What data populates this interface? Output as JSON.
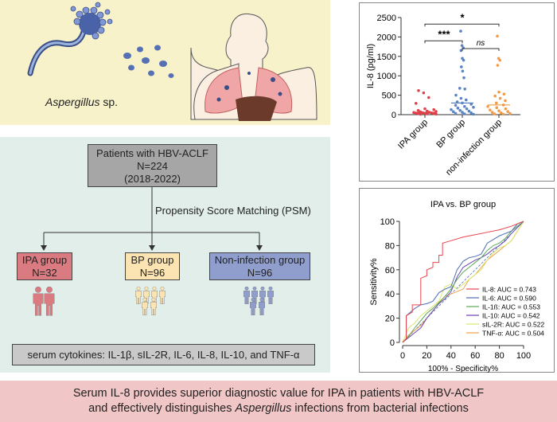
{
  "illustration": {
    "organism_label": "Aspergillus",
    "organism_suffix": " sp."
  },
  "flowchart": {
    "root": {
      "line1": "Patients with HBV-ACLF",
      "line2": "N=224",
      "line3": "(2018-2022)"
    },
    "method": "Propensity Score Matching (PSM)",
    "groups": [
      {
        "name": "IPA group",
        "n": "N=32",
        "color": "#d97b80"
      },
      {
        "name": "BP group",
        "n": "N=96",
        "color": "#fbe4b2"
      },
      {
        "name": "Non-infection group",
        "n": "N=96",
        "color": "#8f9ecd"
      }
    ],
    "cytokines": "serum cytokines: IL-1β, sIL-2R, IL-6, IL-8, IL-10, and TNF-α"
  },
  "chart_data": [
    {
      "type": "scatter",
      "ylabel": "IL-8 (pg/ml)",
      "ylim": [
        0,
        2500
      ],
      "yticks": [
        "0",
        "500",
        "1000",
        "1500",
        "2000",
        "2500"
      ],
      "categories": [
        "IPA group",
        "BP group",
        "non-infection group"
      ],
      "colors": [
        "#e0404a",
        "#5b84c4",
        "#f39a45"
      ],
      "series": [
        {
          "values": [
            620,
            560,
            440,
            290,
            150,
            130,
            110,
            90,
            80,
            70,
            60,
            55,
            50,
            45,
            40,
            35,
            30,
            25,
            20,
            15,
            10
          ]
        },
        {
          "values": [
            2150,
            1780,
            1720,
            1650,
            1450,
            1400,
            1230,
            1120,
            950,
            680,
            660,
            500,
            420,
            380,
            330,
            300,
            270,
            240,
            210,
            190,
            170,
            150,
            130,
            110,
            90,
            75,
            60,
            45,
            30,
            20,
            10
          ]
        },
        {
          "values": [
            2020,
            1450,
            1400,
            1270,
            580,
            530,
            480,
            420,
            360,
            300,
            250,
            210,
            180,
            150,
            120,
            100,
            80,
            60,
            45,
            30,
            20,
            10
          ]
        }
      ],
      "annotations": [
        {
          "from": "IPA group",
          "to": "non-infection group",
          "label": "*"
        },
        {
          "from": "IPA group",
          "to": "BP group",
          "label": "***"
        },
        {
          "from": "BP group",
          "to": "non-infection group",
          "label": "ns"
        }
      ]
    },
    {
      "type": "line",
      "title": "IPA vs. BP group",
      "xlabel": "100% - Specificity%",
      "ylabel": "Sensitivity%",
      "xlim": [
        0,
        100
      ],
      "ylim": [
        0,
        100
      ],
      "xticks": [
        "0",
        "20",
        "40",
        "60",
        "80",
        "100"
      ],
      "yticks": [
        "0",
        "20",
        "40",
        "60",
        "80",
        "100"
      ],
      "legend_position": "bottom-right",
      "series": [
        {
          "name": "IL-8: AUC = 0.743",
          "color": "#e8474f",
          "x": [
            0,
            3,
            3,
            8,
            8,
            15,
            15,
            20,
            20,
            25,
            25,
            30,
            30,
            33,
            33,
            40,
            50,
            60,
            70,
            80,
            90,
            100
          ],
          "y": [
            0,
            3,
            22,
            25,
            31,
            31,
            53,
            55,
            60,
            62,
            66,
            66,
            72,
            72,
            82,
            84,
            87,
            89,
            91,
            93,
            96,
            100
          ]
        },
        {
          "name": "IL-6: AUC = 0.590",
          "color": "#4f6fb3",
          "x": [
            0,
            3,
            3,
            10,
            15,
            20,
            25,
            30,
            35,
            40,
            45,
            50,
            55,
            60,
            65,
            70,
            75,
            80,
            90,
            95,
            100
          ],
          "y": [
            0,
            3,
            22,
            28,
            31,
            32,
            34,
            41,
            44,
            46,
            60,
            67,
            70,
            71,
            73,
            82,
            85,
            88,
            92,
            98,
            100
          ]
        },
        {
          "name": "IL-1ß: AUC = 0.553",
          "color": "#5aa85a",
          "x": [
            0,
            5,
            10,
            15,
            20,
            25,
            30,
            35,
            40,
            45,
            50,
            55,
            60,
            65,
            70,
            75,
            80,
            85,
            90,
            100
          ],
          "y": [
            0,
            5,
            12,
            18,
            24,
            28,
            33,
            38,
            44,
            52,
            58,
            62,
            66,
            70,
            76,
            80,
            82,
            86,
            92,
            100
          ]
        },
        {
          "name": "IL-10: AUC = 0.542",
          "color": "#6b45b5",
          "x": [
            0,
            5,
            10,
            15,
            20,
            25,
            30,
            35,
            40,
            45,
            50,
            55,
            60,
            65,
            70,
            75,
            80,
            85,
            90,
            100
          ],
          "y": [
            0,
            4,
            8,
            12,
            20,
            26,
            32,
            36,
            42,
            54,
            62,
            65,
            68,
            70,
            73,
            77,
            80,
            84,
            90,
            100
          ]
        },
        {
          "name": "sIL-2R: AUC = 0.522",
          "color": "#d9e86b",
          "x": [
            0,
            5,
            10,
            15,
            20,
            25,
            30,
            35,
            40,
            45,
            50,
            55,
            60,
            65,
            70,
            75,
            80,
            85,
            90,
            100
          ],
          "y": [
            0,
            12,
            16,
            22,
            26,
            30,
            34,
            46,
            48,
            44,
            48,
            52,
            56,
            60,
            68,
            74,
            78,
            80,
            84,
            100
          ]
        },
        {
          "name": "TNF-α: AUC = 0.504",
          "color": "#f0a24d",
          "x": [
            0,
            5,
            10,
            15,
            20,
            25,
            30,
            35,
            40,
            45,
            50,
            55,
            60,
            65,
            70,
            75,
            80,
            85,
            90,
            100
          ],
          "y": [
            0,
            6,
            10,
            14,
            20,
            26,
            32,
            38,
            40,
            42,
            44,
            52,
            56,
            62,
            68,
            72,
            76,
            80,
            84,
            100
          ]
        }
      ],
      "reference_line": {
        "x": [
          0,
          100
        ],
        "y": [
          0,
          100
        ],
        "color": "#4f6fb3"
      }
    }
  ],
  "banner": {
    "line1": "Serum IL-8 provides superior diagnostic value for IPA in patients with HBV-ACLF",
    "line2_prefix": "and effectively distinguishes ",
    "line2_italic": "Aspergillus",
    "line2_suffix": " infections from bacterial infections"
  }
}
